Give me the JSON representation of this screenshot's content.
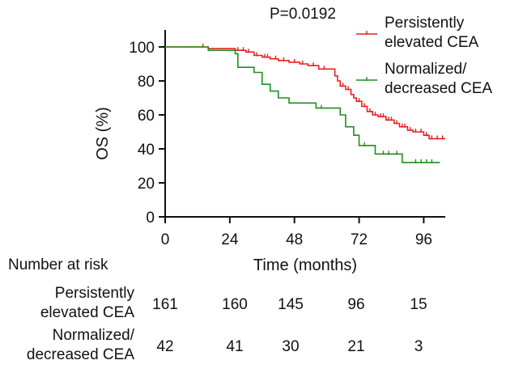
{
  "chart_data": {
    "type": "line",
    "title": "",
    "annotation": "P=0.0192",
    "xlabel": "Time (months)",
    "ylabel": "OS (%)",
    "xlim": [
      0,
      104
    ],
    "ylim": [
      0,
      110
    ],
    "xticks": [
      0,
      24,
      48,
      72,
      96
    ],
    "yticks": [
      0,
      20,
      40,
      60,
      80,
      100
    ],
    "legend_position": "top-right",
    "series": [
      {
        "name": "Persistently elevated CEA",
        "legend_lines": [
          "Persistently",
          "elevated CEA"
        ],
        "color": "#e8201f",
        "x": [
          0,
          16,
          26,
          30,
          33,
          36,
          39,
          42,
          46,
          50,
          53,
          57,
          61,
          63,
          64,
          65,
          67,
          69,
          70,
          71,
          73,
          75,
          77,
          79,
          82,
          85,
          87,
          90,
          92,
          96,
          98,
          104
        ],
        "y": [
          100,
          99,
          98,
          97,
          95,
          94,
          93,
          92,
          91,
          90,
          89,
          87,
          87,
          83,
          80,
          77,
          75,
          72,
          70,
          68,
          65,
          62,
          60,
          59,
          57,
          55,
          53,
          51,
          50,
          48,
          46,
          46
        ],
        "censor_x": [
          14,
          27,
          29,
          31,
          34,
          37,
          38,
          41,
          44,
          48,
          51,
          55,
          59,
          66,
          68,
          72,
          74,
          76,
          78,
          80,
          81,
          83,
          84,
          86,
          88,
          89,
          91,
          93,
          95,
          97,
          99,
          101,
          103
        ]
      },
      {
        "name": "Normalized/decreased CEA",
        "legend_lines": [
          "Normalized/",
          "decreased CEA"
        ],
        "color": "#1f8f1f",
        "x": [
          0,
          16,
          26,
          27,
          33,
          36,
          39,
          42,
          46,
          56,
          65,
          67,
          70,
          72,
          78,
          88,
          102
        ],
        "y": [
          100,
          98,
          96,
          88,
          85,
          78,
          74,
          70,
          67,
          64,
          60,
          53,
          48,
          42,
          37,
          32,
          32
        ],
        "censor_x": [
          58,
          74,
          81,
          83,
          86,
          93,
          95,
          97,
          99
        ]
      }
    ]
  },
  "risk_table": {
    "title": "Number at risk",
    "times": [
      0,
      24,
      48,
      72,
      96
    ],
    "rows": [
      {
        "label_lines": [
          "Persistently",
          "elevated CEA"
        ],
        "values": [
          "161",
          "160",
          "145",
          "96",
          "15"
        ]
      },
      {
        "label_lines": [
          "Normalized/",
          "decreased CEA"
        ],
        "values": [
          "42",
          "41",
          "30",
          "21",
          "3"
        ]
      }
    ]
  }
}
